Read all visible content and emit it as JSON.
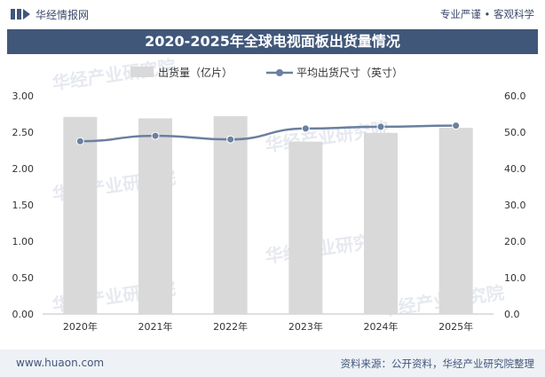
{
  "header": {
    "brand": "华经情报网",
    "slogan": "专业严谨 • 客观科学"
  },
  "footer": {
    "url": "www.huaon.com",
    "source": "资料来源：公开资料，华经产业研究院整理"
  },
  "watermark": "华经产业研究院",
  "colors": {
    "title_bg": "#41577a",
    "bar": "#d9d9d9",
    "line": "#6b7fa0",
    "marker": "#6b7fa0"
  },
  "chart_data": {
    "type": "bar",
    "title": "2020-2025年全球电视面板出货量情况",
    "categories": [
      "2020年",
      "2021年",
      "2022年",
      "2023年",
      "2024年",
      "2025年"
    ],
    "series": [
      {
        "name": "出货量（亿片）",
        "type": "bar",
        "axis": "left",
        "values": [
          2.71,
          2.69,
          2.72,
          2.37,
          2.49,
          2.56
        ]
      },
      {
        "name": "平均出货尺寸（英寸）",
        "type": "line",
        "axis": "right",
        "values": [
          47.5,
          49.0,
          48.0,
          51.0,
          51.5,
          51.8
        ]
      }
    ],
    "y_left": {
      "min": 0,
      "max": 3.0,
      "ticks": [
        "0.00",
        "0.50",
        "1.00",
        "1.50",
        "2.00",
        "2.50",
        "3.00"
      ]
    },
    "y_right": {
      "min": 0,
      "max": 60,
      "ticks": [
        "0.0",
        "10.0",
        "20.0",
        "30.0",
        "40.0",
        "50.0",
        "60.0"
      ]
    },
    "legend_position": "top"
  }
}
